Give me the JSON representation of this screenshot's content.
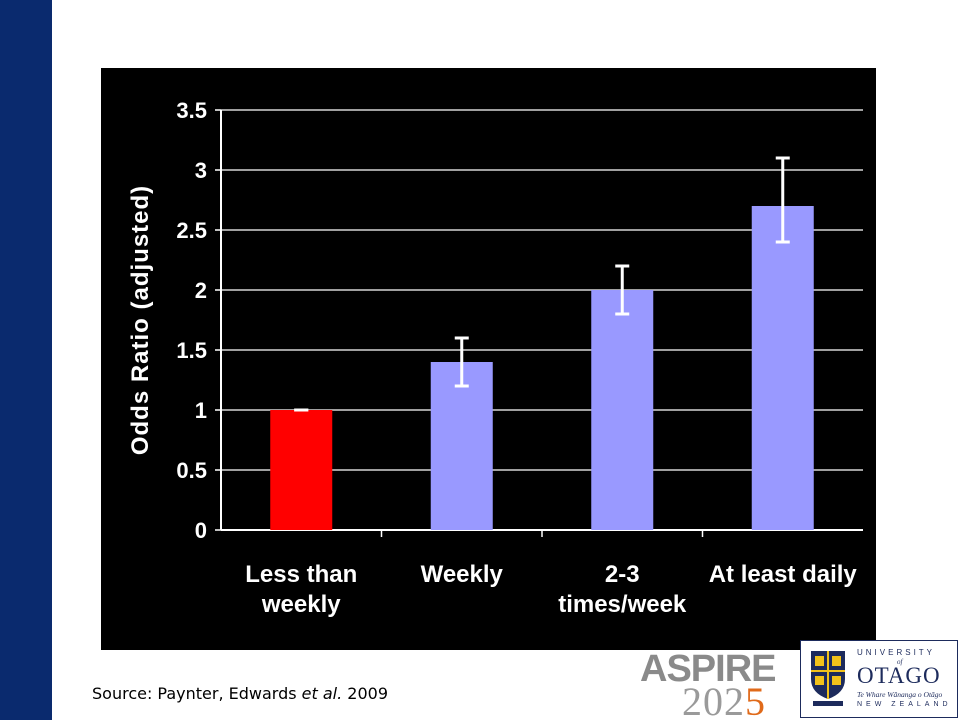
{
  "chart_data": {
    "type": "bar",
    "categories": [
      [
        "Less than",
        "weekly"
      ],
      [
        "Weekly"
      ],
      [
        "2-3",
        "times/week"
      ],
      [
        "At least daily"
      ]
    ],
    "values": [
      1.0,
      1.4,
      2.0,
      2.7
    ],
    "error_bars": [
      {
        "low": 1.0,
        "high": 1.0
      },
      {
        "low": 1.2,
        "high": 1.6
      },
      {
        "low": 1.8,
        "high": 2.2
      },
      {
        "low": 2.4,
        "high": 3.1
      }
    ],
    "bar_colors": [
      "#ff0000",
      "#9999ff",
      "#9999ff",
      "#9999ff"
    ],
    "ylabel": "Odds Ratio (adjusted)",
    "xlabel": "",
    "ylim": [
      0,
      3.5
    ],
    "yticks": [
      0,
      0.5,
      1,
      1.5,
      2,
      2.5,
      3,
      3.5
    ],
    "ytick_labels": [
      "0",
      "0.5",
      "1",
      "1.5",
      "2",
      "2.5",
      "3",
      "3.5"
    ],
    "grid": true,
    "background": "#000000",
    "axis_color": "#ffffff"
  },
  "source": {
    "prefix": "Source: Paynter, Edwards ",
    "italic": "et al.",
    "suffix": " 2009"
  },
  "logos": {
    "aspire": {
      "word": "ASPIRE",
      "year_main": "202",
      "year_hl": "5"
    },
    "otago": {
      "university": "UNIVERSITY",
      "of": "of",
      "name": "OTAGO",
      "maori": "Te Whare Wānanga o Otāgo",
      "country": "NEW ZEALAND"
    }
  },
  "colors": {
    "sidebar": "#0a2a6e",
    "aspire_accent": "#e06a1a",
    "otago_navy": "#1d2b5c",
    "otago_gold": "#f2c21a"
  }
}
